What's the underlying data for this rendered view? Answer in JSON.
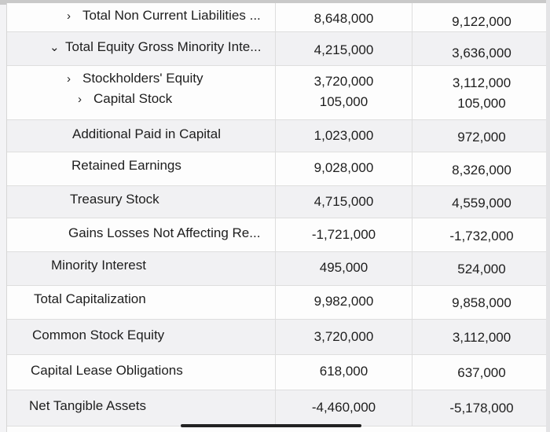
{
  "rows": [
    {
      "label": "Total Non Current Liabilities ...",
      "icon": "chevron-right-icon",
      "glyph": "›",
      "v1": "8,648,000",
      "v2": "9,122,000"
    },
    {
      "label": "Total Equity Gross Minority Inte...",
      "icon": "chevron-down-icon",
      "glyph": "⌄",
      "v1": "4,215,000",
      "v2": "3,636,000"
    },
    {
      "label": "Stockholders' Equity",
      "icon": "chevron-right-icon",
      "glyph": "›",
      "v1": "3,720,000",
      "v2": "3,112,000"
    },
    {
      "label": "Capital Stock",
      "icon": "chevron-right-icon",
      "glyph": "›",
      "v1": "105,000",
      "v2": "105,000"
    },
    {
      "label": "Additional Paid in Capital",
      "v1": "1,023,000",
      "v2": "972,000"
    },
    {
      "label": "Retained Earnings",
      "v1": "9,028,000",
      "v2": "8,326,000"
    },
    {
      "label": "Treasury Stock",
      "v1": "4,715,000",
      "v2": "4,559,000"
    },
    {
      "label": "Gains Losses Not Affecting Re...",
      "v1": "-1,721,000",
      "v2": "-1,732,000"
    },
    {
      "label": "Minority Interest",
      "v1": "495,000",
      "v2": "524,000"
    },
    {
      "label": "Total Capitalization",
      "v1": "9,982,000",
      "v2": "9,858,000"
    },
    {
      "label": "Common Stock Equity",
      "v1": "3,720,000",
      "v2": "3,112,000"
    },
    {
      "label": "Capital Lease Obligations",
      "v1": "618,000",
      "v2": "637,000"
    },
    {
      "label": "Net Tangible Assets",
      "v1": "-4,460,000",
      "v2": "-5,178,000"
    }
  ]
}
